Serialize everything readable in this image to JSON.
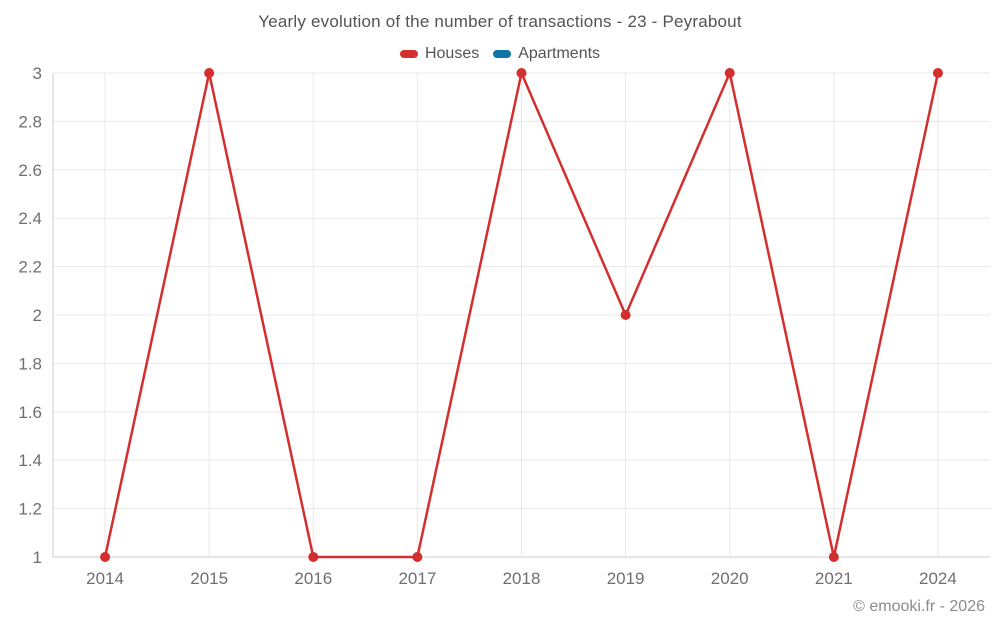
{
  "chart": {
    "title": "Yearly evolution of the number of transactions - 23 - Peyrabout"
  },
  "chart_data": {
    "type": "line",
    "title": "Yearly evolution of the number of transactions - 23 - Peyrabout",
    "categories": [
      "2014",
      "2015",
      "2016",
      "2017",
      "2018",
      "2019",
      "2020",
      "2021",
      "2024"
    ],
    "series": [
      {
        "name": "Houses",
        "color": "#d32f2f",
        "values": [
          1,
          3,
          1,
          1,
          3,
          2,
          3,
          1,
          3
        ]
      },
      {
        "name": "Apartments",
        "color": "#0f74a8",
        "values": []
      }
    ],
    "xlabel": "",
    "ylabel": "",
    "ylim": [
      1,
      3
    ],
    "yticks": {
      "values": [
        1,
        1.2,
        1.4,
        1.6,
        1.8,
        2,
        2.2,
        2.4,
        2.6,
        2.8,
        3
      ],
      "labels": [
        "1",
        "1.2",
        "1.4",
        "1.6",
        "1.8",
        "2",
        "2.2",
        "2.4",
        "2.6",
        "2.8",
        "3"
      ]
    },
    "grid": true,
    "legend_position": "top",
    "marker_radius": 5,
    "line_width": 2.5
  },
  "style": {
    "grid_color": "#e8e8e8",
    "axis_color": "#cccccc",
    "tick_color": "#6f6f6f",
    "tick_font_size": 17
  },
  "footer": {
    "copyright": "© emooki.fr - 2026"
  }
}
